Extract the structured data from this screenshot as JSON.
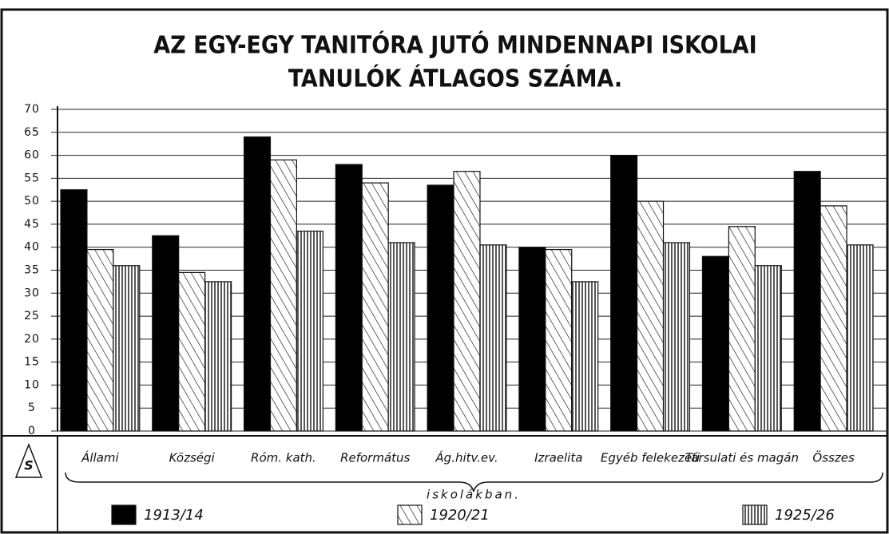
{
  "chart_data": {
    "type": "bar",
    "title": "AZ EGY-EGY TANITÓRA JUTÓ MINDENNAPI ISKOLAI",
    "subtitle": "TANULÓK ÁTLAGOS SZÁMA.",
    "categories": [
      "Állami",
      "Községi",
      "Róm. kath.",
      "Református",
      "Ág.hitv.ev.",
      "Izraelita",
      "Egyéb felekezeti",
      "Társulati és magán",
      "Összes"
    ],
    "group_label": "iskolákban.",
    "symbol": "S",
    "series": [
      {
        "name": "1913/14",
        "color": "#000000",
        "pattern": "solid",
        "values": [
          52.5,
          42.5,
          64,
          58,
          53.5,
          40,
          60,
          38,
          56.5
        ]
      },
      {
        "name": "1920/21",
        "color": "#000000",
        "pattern": "diagonal",
        "values": [
          39.5,
          34.5,
          59,
          54,
          56.5,
          39.5,
          50,
          44.5,
          49
        ]
      },
      {
        "name": "1925/26",
        "color": "#000000",
        "pattern": "vertical",
        "values": [
          36,
          32.5,
          43.5,
          41,
          40.5,
          32.5,
          41,
          36,
          40.5
        ]
      }
    ],
    "ylim": [
      0,
      70
    ],
    "yticks": [
      0,
      5,
      10,
      15,
      20,
      25,
      30,
      35,
      40,
      45,
      50,
      55,
      60,
      65,
      70
    ],
    "grid": true
  }
}
